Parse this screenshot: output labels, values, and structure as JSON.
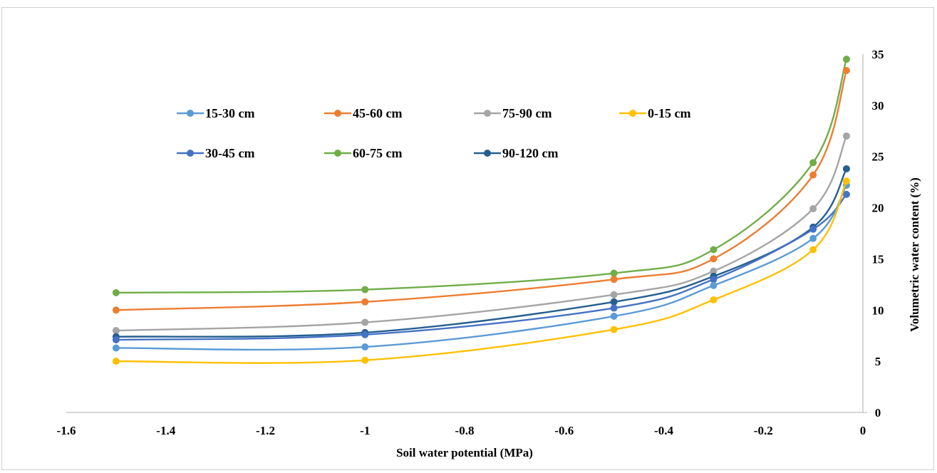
{
  "chart_data": {
    "type": "line",
    "title": "",
    "xlabel": "Soil water potential (MPa)",
    "ylabel": "Volumetric water content (%)",
    "xlim": [
      -1.6,
      0
    ],
    "ylim": [
      0,
      35
    ],
    "x_ticks": [
      "-1.6",
      "-1.4",
      "-1.2",
      "-1",
      "-0.8",
      "-0.6",
      "-0.4",
      "-0.2",
      "0"
    ],
    "y_ticks": [
      "0",
      "5",
      "10",
      "15",
      "20",
      "25",
      "30",
      "35"
    ],
    "y_axis_side": "right",
    "grid": false,
    "smooth": true,
    "legend_position": "top-left",
    "x": [
      -1.5,
      -1.0,
      -0.5,
      -0.3,
      -0.1,
      -0.033
    ],
    "series": [
      {
        "name": "15-30 cm",
        "color": "#5B9BD5",
        "values": [
          6.3,
          6.4,
          9.4,
          12.4,
          17.0,
          22.2
        ]
      },
      {
        "name": "45-60 cm",
        "color": "#ED7D31",
        "values": [
          10.0,
          10.8,
          13.0,
          15.0,
          23.2,
          33.4
        ]
      },
      {
        "name": "75-90 cm",
        "color": "#A5A5A5",
        "values": [
          8.0,
          8.8,
          11.5,
          13.8,
          19.9,
          27.0
        ]
      },
      {
        "name": "0-15 cm",
        "color": "#FFC000",
        "values": [
          5.0,
          5.1,
          8.1,
          11.0,
          15.9,
          22.6
        ]
      },
      {
        "name": "30-45 cm",
        "color": "#4472C4",
        "values": [
          7.1,
          7.6,
          10.2,
          13.0,
          17.9,
          21.3
        ]
      },
      {
        "name": "60-75 cm",
        "color": "#70AD47",
        "values": [
          11.7,
          12.0,
          13.6,
          15.9,
          24.4,
          34.5
        ]
      },
      {
        "name": "90-120 cm",
        "color": "#255E91",
        "values": [
          7.4,
          7.8,
          10.8,
          13.3,
          18.1,
          23.8
        ]
      }
    ]
  }
}
